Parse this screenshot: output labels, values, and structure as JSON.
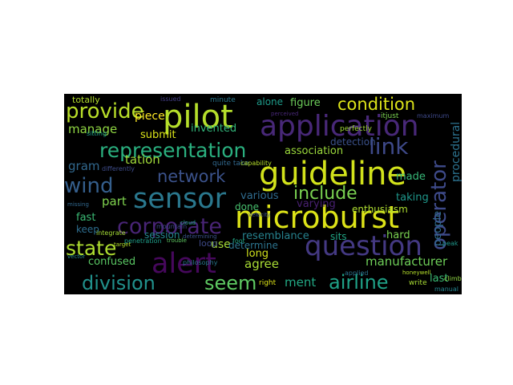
{
  "wordcloud": {
    "background": "#000000",
    "words": [
      {
        "text": "microburst",
        "color": "#dde318"
      },
      {
        "text": "guideline",
        "color": "#d2e21b"
      },
      {
        "text": "application",
        "color": "#482878"
      },
      {
        "text": "pilot",
        "color": "#b5de2b"
      },
      {
        "text": "question",
        "color": "#443983"
      },
      {
        "text": "sensor",
        "color": "#2a788e"
      },
      {
        "text": "alert",
        "color": "#46085c"
      },
      {
        "text": "operator",
        "color": "#3e4a89"
      },
      {
        "text": "representation",
        "color": "#2ab07f"
      },
      {
        "text": "corporate",
        "color": "#482475"
      },
      {
        "text": "division",
        "color": "#21918c"
      },
      {
        "text": "seem",
        "color": "#5ec962"
      },
      {
        "text": "provide",
        "color": "#b8de29"
      },
      {
        "text": "condition",
        "color": "#dce319"
      },
      {
        "text": "network",
        "color": "#3b528b"
      },
      {
        "text": "include",
        "color": "#7ad151"
      },
      {
        "text": "airline",
        "color": "#1fa187"
      },
      {
        "text": "link",
        "color": "#3e4989"
      },
      {
        "text": "state",
        "color": "#addc30"
      },
      {
        "text": "wind",
        "color": "#355f8d"
      },
      {
        "text": "manufacturer",
        "color": "#6ece58"
      },
      {
        "text": "procedural",
        "color": "#2c728e"
      },
      {
        "text": "manage",
        "color": "#90d743"
      },
      {
        "text": "tation",
        "color": "#a0da39"
      },
      {
        "text": "gram",
        "color": "#31688e"
      },
      {
        "text": "part",
        "color": "#7fd34e"
      },
      {
        "text": "agree",
        "color": "#a8db34"
      },
      {
        "text": "ment",
        "color": "#22a884"
      },
      {
        "text": "resemblance",
        "color": "#26828e"
      },
      {
        "text": "association",
        "color": "#9bd93c"
      },
      {
        "text": "people",
        "color": "#2f6c8e"
      },
      {
        "text": "confused",
        "color": "#5ac864"
      },
      {
        "text": "submit",
        "color": "#dae319"
      },
      {
        "text": "piece",
        "color": "#fde725"
      },
      {
        "text": "invented",
        "color": "#32b67a"
      },
      {
        "text": "figure",
        "color": "#6ccd5a"
      },
      {
        "text": "alone",
        "color": "#1e9b8a"
      },
      {
        "text": "detection",
        "color": "#3b518b"
      },
      {
        "text": "varying",
        "color": "#482071"
      },
      {
        "text": "enthusiasm",
        "color": "#addc30"
      },
      {
        "text": "made",
        "color": "#37b878"
      },
      {
        "text": "taking",
        "color": "#1f978b"
      },
      {
        "text": "hard",
        "color": "#7ad151"
      },
      {
        "text": "last",
        "color": "#3bbb75"
      },
      {
        "text": "various",
        "color": "#2f6b8e"
      },
      {
        "text": "done",
        "color": "#48c16e"
      },
      {
        "text": "long",
        "color": "#d0e11c"
      },
      {
        "text": "use",
        "color": "#a5db36"
      },
      {
        "text": "determine",
        "color": "#2c738e"
      },
      {
        "text": "session",
        "color": "#23888e"
      },
      {
        "text": "fast",
        "color": "#3bbb75"
      },
      {
        "text": "keep",
        "color": "#2e6d8e"
      },
      {
        "text": "loop",
        "color": "#3e4a89"
      },
      {
        "text": "sits",
        "color": "#21a685"
      },
      {
        "text": "totally",
        "color": "#b2dd2d"
      },
      {
        "text": "minute",
        "color": "#2a788e"
      },
      {
        "text": "quite take",
        "color": "#31688e"
      },
      {
        "text": "right",
        "color": "#dde318"
      },
      {
        "text": "perfectly",
        "color": "#a0da39"
      },
      {
        "text": "manual",
        "color": "#25848e"
      },
      {
        "text": "penetration",
        "color": "#1f9e89"
      },
      {
        "text": "differently",
        "color": "#3e4c8a"
      },
      {
        "text": "honeywell",
        "color": "#b5de2b"
      },
      {
        "text": "foot",
        "color": "#22a785"
      },
      {
        "text": "capability",
        "color": "#b5de2b"
      },
      {
        "text": "itjust",
        "color": "#7ad151"
      },
      {
        "text": "applied",
        "color": "#2c728e"
      },
      {
        "text": "mountain",
        "color": "#3e4989"
      },
      {
        "text": "velocity",
        "color": "#3b528b"
      },
      {
        "text": "philosophy",
        "color": "#2a788e"
      },
      {
        "text": "vector",
        "color": "#24868e"
      },
      {
        "text": "target",
        "color": "#b5de2b"
      },
      {
        "text": "sitting",
        "color": "#1f9e89"
      },
      {
        "text": "cloud",
        "color": "#22a884"
      },
      {
        "text": "missing",
        "color": "#31688e"
      },
      {
        "text": "integrate",
        "color": "#a5db36"
      },
      {
        "text": "trouble",
        "color": "#5ec962"
      },
      {
        "text": "determining",
        "color": "#3b528b"
      },
      {
        "text": "write",
        "color": "#a8db34"
      },
      {
        "text": "issued",
        "color": "#433e85"
      },
      {
        "text": "peak",
        "color": "#1f978b"
      },
      {
        "text": "climb",
        "color": "#90d743"
      },
      {
        "text": "maximum",
        "color": "#3e4989"
      },
      {
        "text": "perceived",
        "color": "#482878"
      }
    ]
  }
}
